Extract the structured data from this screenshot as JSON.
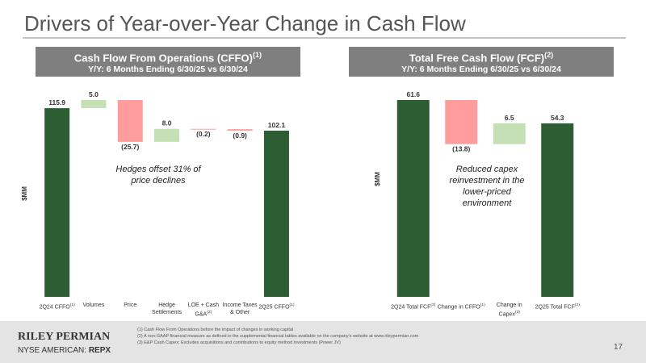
{
  "title": "Drivers of Year-over-Year Change in Cash Flow",
  "chart_data": [
    {
      "type": "waterfall",
      "title": "Cash Flow From Operations (CFFO)",
      "title_note": "(1)",
      "subtitle": "Y/Y: 6 Months Ending 6/30/25 vs 6/30/24",
      "y_label": "$MM",
      "categories": [
        "2Q24 CFFO",
        "Volumes",
        "Price",
        "Hedge Settlements",
        "LOE + Cash G&A",
        "Income Taxes & Other",
        "2Q25 CFFO"
      ],
      "category_notes": [
        "(1)",
        null,
        null,
        null,
        "(2)",
        null,
        "(1)"
      ],
      "values": [
        115.9,
        5.0,
        -25.7,
        8.0,
        -0.2,
        -0.9,
        102.1
      ],
      "value_labels": [
        "115.9",
        "5.0",
        "(25.7)",
        "8.0",
        "(0.2)",
        "(0.9)",
        "102.1"
      ],
      "colors": {
        "total": "#2d5e33",
        "increase": "#c5e0b4",
        "decrease": "#ff9c9c"
      },
      "annotation": "Hedges offset 31% of price declines"
    },
    {
      "type": "waterfall",
      "title": "Total Free Cash Flow (FCF)",
      "title_note": "(2)",
      "subtitle": "Y/Y: 6 Months Ending 6/30/25 vs 6/30/24",
      "y_label": "$MM",
      "categories": [
        "2Q24 Total FCF",
        "Change in CFFO",
        "Change in Capex",
        "2Q25 Total FCF"
      ],
      "category_notes": [
        "(2)",
        "(1)",
        "(3)",
        "(2)"
      ],
      "values": [
        61.6,
        -13.8,
        6.5,
        54.3
      ],
      "value_labels": [
        "61.6",
        "(13.8)",
        "6.5",
        "54.3"
      ],
      "colors": {
        "total": "#2d5e33",
        "increase": "#c5e0b4",
        "decrease": "#ff9c9c"
      },
      "annotation": "Reduced capex reinvestment in the lower-priced environment"
    }
  ],
  "footer": {
    "company": "RILEY PERMIAN",
    "exchange": "NYSE AMERICAN:",
    "ticker": "REPX",
    "footnotes": [
      "(1)  Cash Flow From Operations before the impact of changes in working capital",
      "(2)  A non-GAAP financial measure as defined in the supplemental financial tables available on the company's website at www.rileypermian.com",
      "(3)  E&P Cash Capex; Excludes acquisitions and contributions to equity method investments (Power JV)"
    ],
    "page": "17"
  }
}
